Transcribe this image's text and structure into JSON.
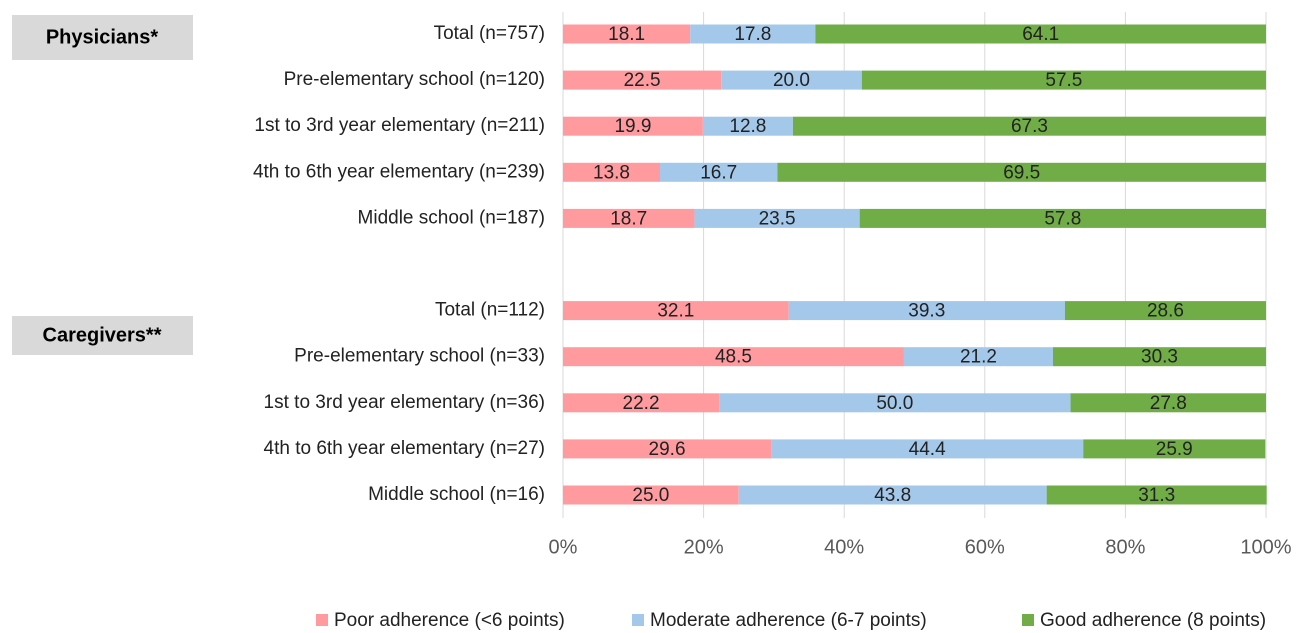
{
  "chart_data": {
    "type": "stacked_barh",
    "annotations": [
      "Physicians*",
      "Caregivers**"
    ],
    "categories": [
      "Total (n=757)",
      "Pre-elementary school (n=120)",
      "1st to 3rd year elementary (n=211)",
      "4th to 6th year elementary (n=239)",
      "Middle school (n=187)",
      null,
      "Total (n=112)",
      "Pre-elementary school (n=33)",
      "1st to 3rd year elementary (n=36)",
      "4th to 6th year elementary (n=27)",
      "Middle school (n=16)"
    ],
    "series": [
      {
        "name": "Poor adherence (<6 points)",
        "color": "#ff9b9f",
        "values": [
          18.1,
          22.5,
          19.9,
          13.8,
          18.7,
          null,
          32.1,
          48.5,
          22.2,
          29.6,
          25.0
        ],
        "value_labels": [
          "18.1",
          "22.5",
          "19.9",
          "13.8",
          "18.7",
          null,
          "32.1",
          "48.5",
          "22.2",
          "29.6",
          "25.0"
        ]
      },
      {
        "name": "Moderate adherence (6-7 points)",
        "color": "#a4c8ea",
        "values": [
          17.8,
          20.0,
          12.8,
          16.7,
          23.5,
          null,
          39.3,
          21.2,
          50.0,
          44.4,
          43.8
        ],
        "value_labels": [
          "17.8",
          "20.0",
          "12.8",
          "16.7",
          "23.5",
          null,
          "39.3",
          "21.2",
          "50.0",
          "44.4",
          "43.8"
        ]
      },
      {
        "name": "Good adherence (8 points)",
        "color": "#70ad47",
        "values": [
          64.1,
          57.5,
          67.3,
          69.5,
          57.8,
          null,
          28.6,
          30.3,
          27.8,
          25.9,
          31.3
        ],
        "value_labels": [
          "64.1",
          "57.5",
          "67.3",
          "69.5",
          "57.8",
          null,
          "28.6",
          "30.3",
          "27.8",
          "25.9",
          "31.3"
        ]
      }
    ],
    "xlim": [
      0,
      100
    ],
    "xticks": [
      {
        "value": 0,
        "label": "0%"
      },
      {
        "value": 20,
        "label": "20%"
      },
      {
        "value": 40,
        "label": "40%"
      },
      {
        "value": 60,
        "label": "60%"
      },
      {
        "value": 80,
        "label": "80%"
      },
      {
        "value": 100,
        "label": "100%"
      }
    ],
    "grid": true,
    "legend": "bottom"
  }
}
